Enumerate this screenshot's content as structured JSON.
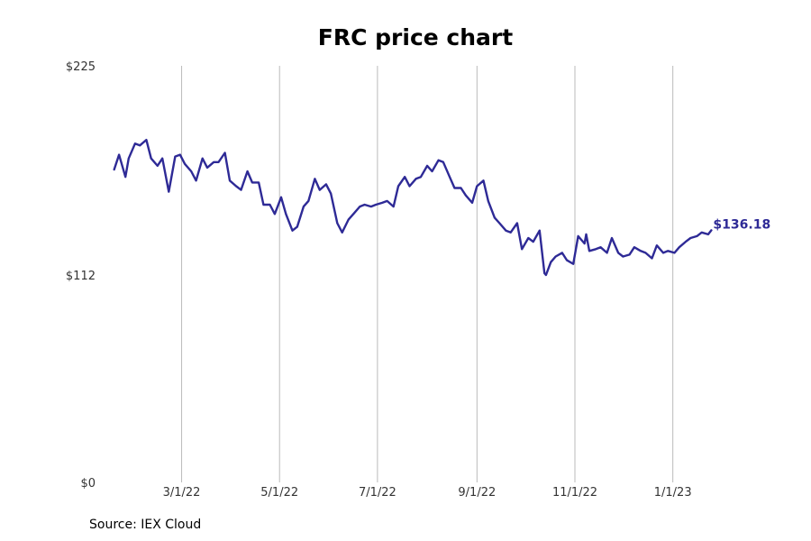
{
  "chart_data": {
    "type": "line",
    "title": "FRC price chart",
    "source": "Source: IEX Cloud",
    "xlabel": "",
    "ylabel": "",
    "ylim": [
      0,
      225
    ],
    "y_ticks": [
      {
        "value": 0,
        "label": "$0"
      },
      {
        "value": 112,
        "label": "$112"
      },
      {
        "value": 225,
        "label": "$225"
      }
    ],
    "xlim": [
      "2022-01-03",
      "2023-02-28"
    ],
    "x_ticks": [
      {
        "date": "2022-03-01",
        "label": "3/1/22"
      },
      {
        "date": "2022-05-01",
        "label": "5/1/22"
      },
      {
        "date": "2022-07-01",
        "label": "7/1/22"
      },
      {
        "date": "2022-09-01",
        "label": "9/1/22"
      },
      {
        "date": "2022-11-01",
        "label": "11/1/22"
      },
      {
        "date": "2023-01-01",
        "label": "1/1/23"
      }
    ],
    "grid": "vertical",
    "line_color": "#2e2a96",
    "end_label": "$136.18",
    "series": [
      {
        "x": [
          "2022-01-18",
          "2022-01-21",
          "2022-01-25",
          "2022-01-27",
          "2022-01-31",
          "2022-02-03",
          "2022-02-07",
          "2022-02-10",
          "2022-02-14",
          "2022-02-17",
          "2022-02-21",
          "2022-02-25",
          "2022-02-28",
          "2022-03-03",
          "2022-03-07",
          "2022-03-10",
          "2022-03-14",
          "2022-03-17",
          "2022-03-21",
          "2022-03-24",
          "2022-03-28",
          "2022-03-31",
          "2022-04-04",
          "2022-04-07",
          "2022-04-11",
          "2022-04-14",
          "2022-04-18",
          "2022-04-21",
          "2022-04-25",
          "2022-04-28",
          "2022-05-02",
          "2022-05-05",
          "2022-05-09",
          "2022-05-12",
          "2022-05-16",
          "2022-05-19",
          "2022-05-23",
          "2022-05-26",
          "2022-05-30",
          "2022-06-02",
          "2022-06-06",
          "2022-06-09",
          "2022-06-13",
          "2022-06-16",
          "2022-06-20",
          "2022-06-23",
          "2022-06-27",
          "2022-06-30",
          "2022-07-04",
          "2022-07-07",
          "2022-07-11",
          "2022-07-14",
          "2022-07-18",
          "2022-07-21",
          "2022-07-25",
          "2022-07-28",
          "2022-08-01",
          "2022-08-04",
          "2022-08-08",
          "2022-08-11",
          "2022-08-15",
          "2022-08-18",
          "2022-08-22",
          "2022-08-25",
          "2022-08-29",
          "2022-09-01",
          "2022-09-05",
          "2022-09-08",
          "2022-09-12",
          "2022-09-15",
          "2022-09-19",
          "2022-09-22",
          "2022-09-26",
          "2022-09-29",
          "2022-10-03",
          "2022-10-06",
          "2022-10-10",
          "2022-10-13",
          "2022-10-14",
          "2022-10-17",
          "2022-10-20",
          "2022-10-24",
          "2022-10-27",
          "2022-10-31",
          "2022-11-03",
          "2022-11-07",
          "2022-11-08",
          "2022-11-10",
          "2022-11-14",
          "2022-11-17",
          "2022-11-21",
          "2022-11-24",
          "2022-11-28",
          "2022-12-01",
          "2022-12-05",
          "2022-12-08",
          "2022-12-12",
          "2022-12-15",
          "2022-12-19",
          "2022-12-22",
          "2022-12-26",
          "2022-12-29",
          "2023-01-02",
          "2023-01-05",
          "2023-01-09",
          "2023-01-12",
          "2023-01-16",
          "2023-01-19",
          "2023-01-23",
          "2023-01-25"
        ],
        "values": [
          169,
          177,
          165,
          175,
          183,
          182,
          185,
          175,
          171,
          175,
          157,
          176,
          177,
          172,
          168,
          163,
          175,
          170,
          173,
          173,
          178,
          163,
          160,
          158,
          168,
          162,
          162,
          150,
          150,
          145,
          154,
          145,
          136,
          138,
          149,
          152,
          164,
          158,
          161,
          156,
          140,
          135,
          142,
          145,
          149,
          150,
          149,
          150,
          151,
          152,
          149,
          160,
          165,
          160,
          164,
          165,
          171,
          168,
          174,
          173,
          165,
          159,
          159,
          155,
          151,
          160,
          163,
          152,
          143,
          140,
          136,
          135,
          140,
          126,
          132,
          130,
          136,
          113,
          112,
          119,
          122,
          124,
          120,
          118,
          133,
          129,
          134,
          125,
          126,
          127,
          124,
          132,
          124,
          122,
          123,
          127,
          125,
          124,
          121,
          128,
          124,
          125,
          124,
          127,
          130,
          132,
          133,
          135,
          134,
          136.18
        ]
      }
    ]
  }
}
